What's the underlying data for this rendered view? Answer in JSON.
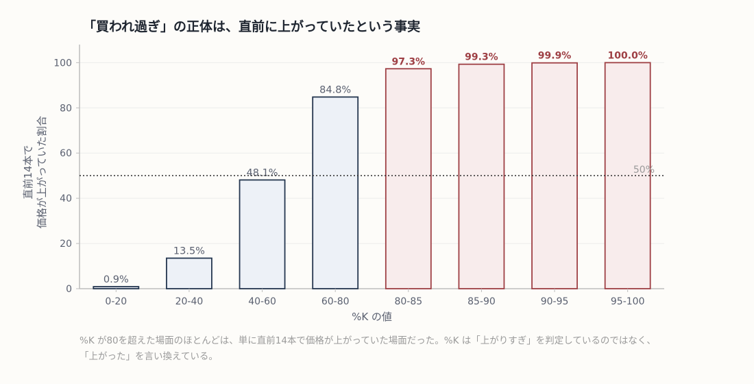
{
  "title": "「買われ過ぎ」の正体は、直前に上がっていたという事実",
  "caption_line1": "%K が80を超えた場面のほとんどは、単に直前14本で価格が上がっていた場面だった。%K は「上がりすぎ」を判定しているのではなく、",
  "caption_line2": "「上がった」を言い換えている。",
  "colors": {
    "normal_stroke": "#24364f",
    "normal_fill": "#edf1f7",
    "high_stroke": "#9e3f44",
    "high_fill": "#f8ecec",
    "axis": "#bdbdbd",
    "grid": "#ececec",
    "tick_text": "#5a6070",
    "reference_line": "#2a2a2a",
    "reference_label": "#9a9a9a"
  },
  "chart_data": {
    "type": "bar",
    "categories": [
      "0-20",
      "20-40",
      "40-60",
      "60-80",
      "80-85",
      "85-90",
      "90-95",
      "95-100"
    ],
    "values": [
      0.9,
      13.5,
      48.1,
      84.8,
      97.3,
      99.3,
      99.9,
      100.0
    ],
    "value_labels": [
      "0.9%",
      "13.5%",
      "48.1%",
      "84.8%",
      "97.3%",
      "99.3%",
      "99.9%",
      "100.0%"
    ],
    "highlighted": [
      false,
      false,
      false,
      false,
      true,
      true,
      true,
      true
    ],
    "xlabel": "%K の値",
    "ylabel_line1": "直前14本で",
    "ylabel_line2": "価格が上がっていた割合",
    "ylim": [
      0,
      108
    ],
    "yticks": [
      0,
      20,
      40,
      60,
      80,
      100
    ],
    "reference_line": {
      "value": 50,
      "label": "50%"
    },
    "grid": true
  }
}
